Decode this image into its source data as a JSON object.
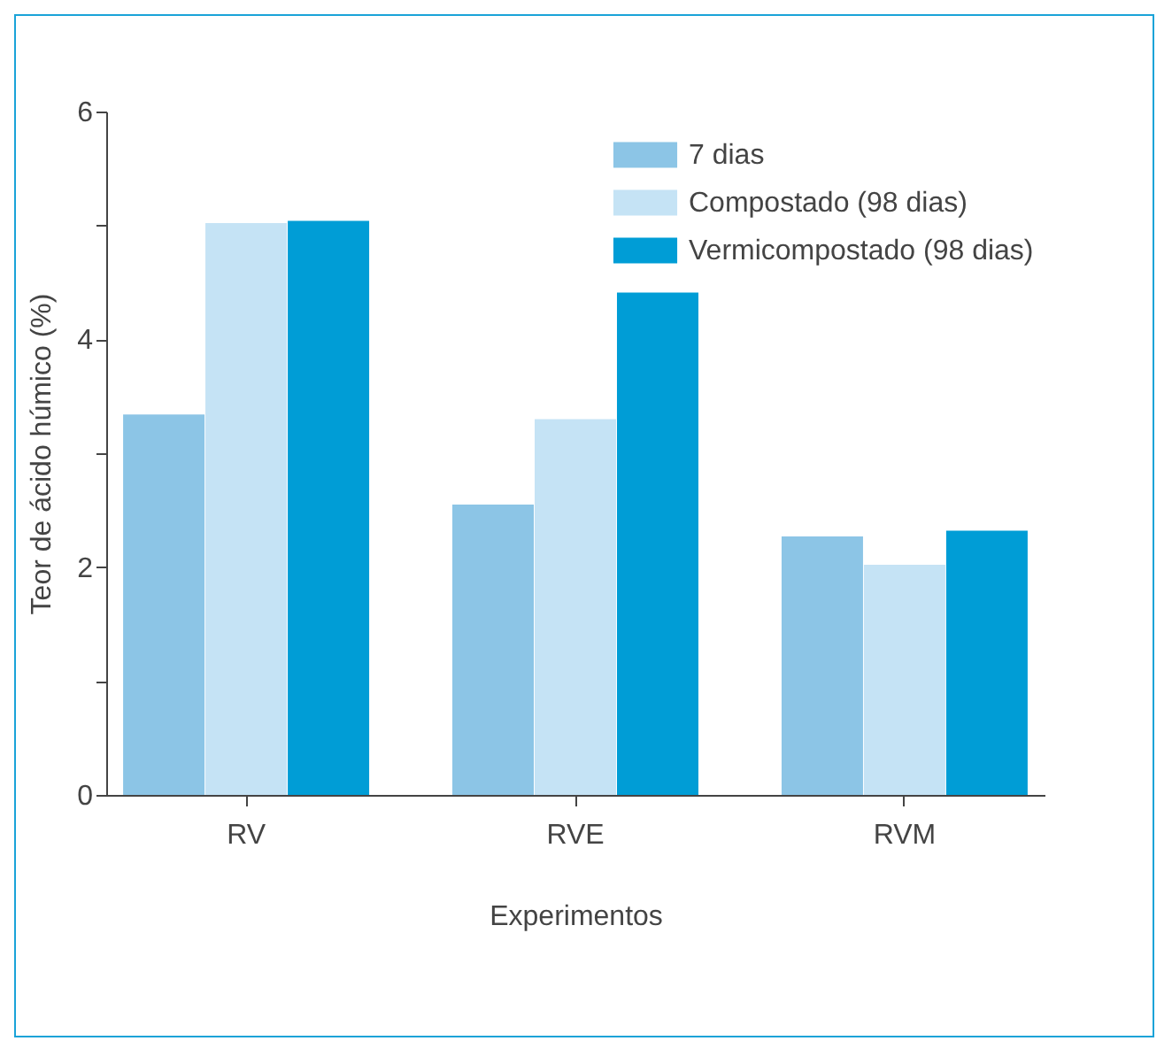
{
  "chart_data": {
    "type": "bar",
    "xlabel": "Experimentos",
    "ylabel": "Teor de ácido húmico (%)",
    "categories": [
      "RV",
      "RVE",
      "RVM"
    ],
    "series": [
      {
        "name": "7 dias",
        "color": "#8cc5e6",
        "values": [
          3.34,
          2.55,
          2.27
        ]
      },
      {
        "name": "Compostado (98 dias)",
        "color": "#c5e3f5",
        "values": [
          5.02,
          3.3,
          2.02
        ]
      },
      {
        "name": "Vermicompostado (98 dias)",
        "color": "#009dd6",
        "values": [
          5.04,
          4.41,
          2.32
        ]
      }
    ],
    "ylim": [
      0,
      6
    ],
    "yticks": [
      0,
      {
        "value": 1,
        "label": null
      },
      2,
      {
        "value": 3,
        "label": null
      },
      4,
      {
        "value": 5,
        "label": null
      },
      6
    ],
    "grid": false,
    "legend": "top right"
  }
}
